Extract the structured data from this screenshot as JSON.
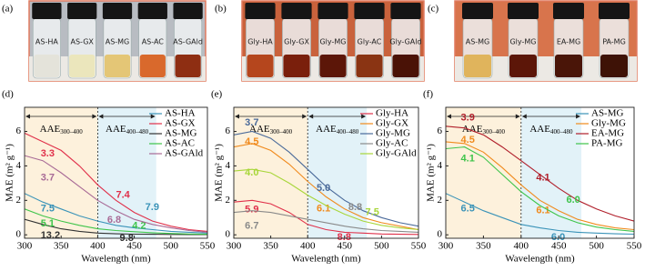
{
  "photos": [
    {
      "label": "(a)",
      "background": "#b8bcc2",
      "vials": [
        {
          "text": "AS-HA",
          "liquid": "#e4e3da"
        },
        {
          "text": "AS-GX",
          "liquid": "#ebe6bc"
        },
        {
          "text": "AS-MG",
          "liquid": "#e4c676"
        },
        {
          "text": "AS-AC",
          "liquid": "#d9692c"
        },
        {
          "text": "AS-GAld",
          "liquid": "#8e2e12"
        }
      ]
    },
    {
      "label": "(b)",
      "background": "#c9623c",
      "vials": [
        {
          "text": "Gly-HA",
          "liquid": "#b5461d"
        },
        {
          "text": "Gly-GX",
          "liquid": "#7a1f0c"
        },
        {
          "text": "Gly-MG",
          "liquid": "#5c1608"
        },
        {
          "text": "Gly-AC",
          "liquid": "#8a3413"
        },
        {
          "text": "Gly-GAld",
          "liquid": "#4a1206"
        }
      ]
    },
    {
      "label": "(c)",
      "background": "#d8744c",
      "vials": [
        {
          "text": "AS-MG",
          "liquid": "#e0b45c"
        },
        {
          "text": "Gly-MG",
          "liquid": "#5c1608"
        },
        {
          "text": "EA-MG",
          "liquid": "#4a1508"
        },
        {
          "text": "PA-MG",
          "liquid": "#3e1206"
        }
      ]
    }
  ],
  "chart_data": [
    {
      "type": "line",
      "label": "(d)",
      "xlabel": "Wavelength (nm)",
      "ylabel": "MAE (m² g⁻¹)",
      "x": [
        300,
        325,
        350,
        375,
        400,
        425,
        450,
        475,
        500,
        525,
        550
      ],
      "xlim": [
        300,
        550
      ],
      "xticks": [
        300,
        350,
        400,
        450,
        500,
        550
      ],
      "ylim": [
        -0.2,
        7.4
      ],
      "yticks": [
        0,
        2,
        4,
        6
      ],
      "regions": [
        {
          "from": 300,
          "to": 400,
          "color": "#fdf1dc",
          "label": "AAE",
          "sub": "300–400"
        },
        {
          "from": 400,
          "to": 480,
          "color": "#e2f2f8",
          "label": "AAE",
          "sub": "400–480"
        }
      ],
      "series": [
        {
          "name": "AS-HA",
          "color": "#3a93b8",
          "values": [
            2.4,
            1.9,
            1.5,
            1.1,
            0.8,
            0.55,
            0.4,
            0.3,
            0.2,
            0.15,
            0.1
          ],
          "aae": [
            "7.5",
            "7.9"
          ]
        },
        {
          "name": "AS-GX",
          "color": "#e0304a",
          "values": [
            5.9,
            5.4,
            4.9,
            4.0,
            2.9,
            2.0,
            1.3,
            0.8,
            0.5,
            0.3,
            0.2
          ],
          "aae": [
            "3.3",
            "7.4"
          ]
        },
        {
          "name": "AS-MG",
          "color": "#333333",
          "values": [
            0.9,
            0.6,
            0.35,
            0.2,
            0.1,
            0.06,
            0.04,
            0.03,
            0.02,
            0.01,
            0.01
          ],
          "aae": [
            "13.2",
            "9.8"
          ]
        },
        {
          "name": "AS-AC",
          "color": "#3ec44a",
          "values": [
            1.5,
            1.1,
            0.8,
            0.55,
            0.35,
            0.25,
            0.18,
            0.12,
            0.08,
            0.05,
            0.03
          ],
          "aae": [
            "5.1",
            "4.2"
          ]
        },
        {
          "name": "AS-GAld",
          "color": "#a86a96",
          "values": [
            4.6,
            4.3,
            3.6,
            2.8,
            2.0,
            1.4,
            0.9,
            0.6,
            0.4,
            0.25,
            0.15
          ],
          "aae": [
            "3.7",
            "6.8"
          ]
        }
      ]
    },
    {
      "type": "line",
      "label": "(e)",
      "xlabel": "Wavelength (nm)",
      "ylabel": "MAE (m² g⁻¹)",
      "x": [
        300,
        325,
        350,
        375,
        400,
        425,
        450,
        475,
        500,
        525,
        550
      ],
      "xlim": [
        300,
        550
      ],
      "xticks": [
        300,
        350,
        400,
        450,
        500,
        550
      ],
      "ylim": [
        -0.2,
        7.4
      ],
      "yticks": [
        0,
        2,
        4,
        6
      ],
      "regions": [
        {
          "from": 300,
          "to": 400,
          "color": "#fdf1dc",
          "label": "AAE",
          "sub": "300–400"
        },
        {
          "from": 400,
          "to": 480,
          "color": "#e2f2f8",
          "label": "AAE",
          "sub": "400–480"
        }
      ],
      "series": [
        {
          "name": "Gly-HA",
          "color": "#e0304a",
          "values": [
            1.9,
            2.0,
            1.8,
            1.3,
            0.6,
            0.3,
            0.15,
            0.1,
            0.05,
            0.03,
            0.02
          ],
          "aae": [
            "5.9",
            "8.8"
          ]
        },
        {
          "name": "Gly-GX",
          "color": "#f08a1c",
          "values": [
            5.1,
            5.3,
            4.9,
            4.1,
            3.1,
            2.2,
            1.5,
            1.0,
            0.7,
            0.5,
            0.3
          ],
          "aae": [
            "4.5",
            "6.1"
          ]
        },
        {
          "name": "Gly-MG",
          "color": "#4a6a9a",
          "values": [
            5.8,
            6.0,
            5.6,
            4.8,
            3.8,
            2.8,
            2.0,
            1.4,
            1.0,
            0.7,
            0.5
          ],
          "aae": [
            "3.7",
            "5.0"
          ]
        },
        {
          "name": "Gly-AC",
          "color": "#8a8a8a",
          "values": [
            1.3,
            1.4,
            1.3,
            1.1,
            0.9,
            0.7,
            0.5,
            0.35,
            0.25,
            0.2,
            0.15
          ],
          "aae": [
            "6.7",
            "8.8"
          ]
        },
        {
          "name": "Gly-GAld",
          "color": "#a8d63a",
          "values": [
            3.7,
            3.8,
            3.6,
            3.0,
            2.3,
            1.7,
            1.2,
            0.8,
            0.55,
            0.4,
            0.3
          ],
          "aae": [
            "4.0",
            "7.5"
          ]
        }
      ]
    },
    {
      "type": "line",
      "label": "(f)",
      "xlabel": "Wavelength (nm)",
      "ylabel": "MAE (m² g⁻¹)",
      "x": [
        300,
        325,
        350,
        375,
        400,
        425,
        450,
        475,
        500,
        525,
        550
      ],
      "xlim": [
        300,
        550
      ],
      "xticks": [
        300,
        350,
        400,
        450,
        500,
        550
      ],
      "ylim": [
        -0.2,
        7.4
      ],
      "yticks": [
        0,
        2,
        4,
        6
      ],
      "regions": [
        {
          "from": 300,
          "to": 400,
          "color": "#fdf1dc",
          "label": "AAE",
          "sub": "300–400"
        },
        {
          "from": 400,
          "to": 480,
          "color": "#e2f2f8",
          "label": "AAE",
          "sub": "400–480"
        }
      ],
      "series": [
        {
          "name": "AS-MG",
          "color": "#3a93b8",
          "values": [
            2.4,
            1.9,
            1.4,
            1.0,
            0.6,
            0.4,
            0.25,
            0.15,
            0.1,
            0.06,
            0.04
          ],
          "aae": [
            "6.5",
            "6.0"
          ]
        },
        {
          "name": "Gly-MG",
          "color": "#f08a1c",
          "values": [
            5.4,
            5.3,
            4.8,
            3.9,
            2.9,
            2.0,
            1.4,
            0.9,
            0.6,
            0.4,
            0.3
          ],
          "aae": [
            "4.5",
            "6.1"
          ]
        },
        {
          "name": "EA-MG",
          "color": "#b01e2a",
          "values": [
            6.3,
            6.2,
            5.8,
            5.1,
            4.3,
            3.5,
            2.7,
            2.0,
            1.5,
            1.1,
            0.8
          ],
          "aae": [
            "3.9",
            "4.1"
          ]
        },
        {
          "name": "PA-MG",
          "color": "#3ec44a",
          "values": [
            5.0,
            5.1,
            4.5,
            3.5,
            2.5,
            1.7,
            1.1,
            0.7,
            0.45,
            0.3,
            0.2
          ],
          "aae": [
            "4.1",
            "6.0"
          ]
        }
      ]
    }
  ]
}
